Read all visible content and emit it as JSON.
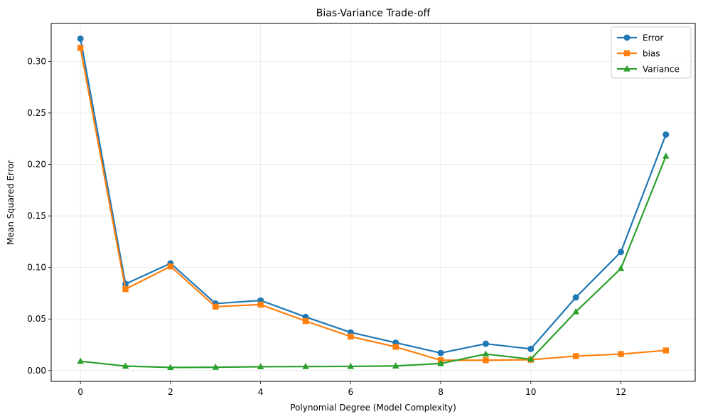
{
  "chart_data": {
    "type": "line",
    "title": "Bias-Variance Trade-off",
    "xlabel": "Polynomial Degree (Model Complexity)",
    "ylabel": "Mean Squared Error",
    "xlim": [
      -0.65,
      13.65
    ],
    "ylim": [
      -0.0105,
      0.3368
    ],
    "x_ticks": [
      0,
      2,
      4,
      6,
      8,
      10,
      12
    ],
    "x_tick_labels": [
      "0",
      "2",
      "4",
      "6",
      "8",
      "10",
      "12"
    ],
    "y_ticks": [
      0.0,
      0.05,
      0.1,
      0.15,
      0.2,
      0.25,
      0.3
    ],
    "y_tick_labels": [
      "0.00",
      "0.05",
      "0.10",
      "0.15",
      "0.20",
      "0.25",
      "0.30"
    ],
    "grid": true,
    "legend_position": "top-right",
    "x": [
      0,
      1,
      2,
      3,
      4,
      5,
      6,
      7,
      8,
      9,
      10,
      11,
      12,
      13
    ],
    "series": [
      {
        "name": "Error",
        "color": "#1f77b4",
        "marker": "circle",
        "values": [
          0.322,
          0.084,
          0.104,
          0.065,
          0.068,
          0.052,
          0.037,
          0.027,
          0.017,
          0.026,
          0.021,
          0.071,
          0.115,
          0.229
        ]
      },
      {
        "name": "bias",
        "color": "#ff7f0e",
        "marker": "square",
        "values": [
          0.313,
          0.079,
          0.101,
          0.062,
          0.064,
          0.048,
          0.033,
          0.023,
          0.01,
          0.01,
          0.0105,
          0.014,
          0.016,
          0.0195
        ]
      },
      {
        "name": "Variance",
        "color": "#2ca02c",
        "marker": "triangle",
        "values": [
          0.009,
          0.0043,
          0.003,
          0.0032,
          0.0037,
          0.0039,
          0.004,
          0.0045,
          0.0068,
          0.016,
          0.011,
          0.057,
          0.099,
          0.208
        ]
      }
    ]
  }
}
